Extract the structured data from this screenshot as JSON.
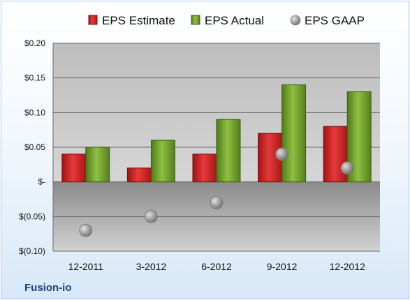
{
  "chart_data": {
    "type": "bar",
    "company": "Fusion-io",
    "categories": [
      "12-2011",
      "3-2012",
      "6-2012",
      "9-2012",
      "12-2012"
    ],
    "series": [
      {
        "name": "EPS Estimate",
        "type": "bar",
        "color": "#cc1f1f",
        "values": [
          0.04,
          0.02,
          0.04,
          0.07,
          0.08
        ]
      },
      {
        "name": "EPS Actual",
        "type": "bar",
        "color": "#6b9a2a",
        "values": [
          0.05,
          0.06,
          0.09,
          0.14,
          0.13
        ]
      },
      {
        "name": "EPS GAAP",
        "type": "scatter",
        "color": "#9a9a9a",
        "values": [
          -0.07,
          -0.05,
          -0.03,
          0.04,
          0.02
        ]
      }
    ],
    "yticks": [
      0.2,
      0.15,
      0.1,
      0.05,
      0,
      -0.05,
      -0.1
    ],
    "ytick_labels": [
      "$0.20",
      "$0.15",
      "$0.10",
      "$0.05",
      "$-",
      "$(0.05)",
      "$(0.10)"
    ],
    "ylim": [
      -0.1,
      0.2
    ],
    "legend_position": "top",
    "grid": true
  }
}
